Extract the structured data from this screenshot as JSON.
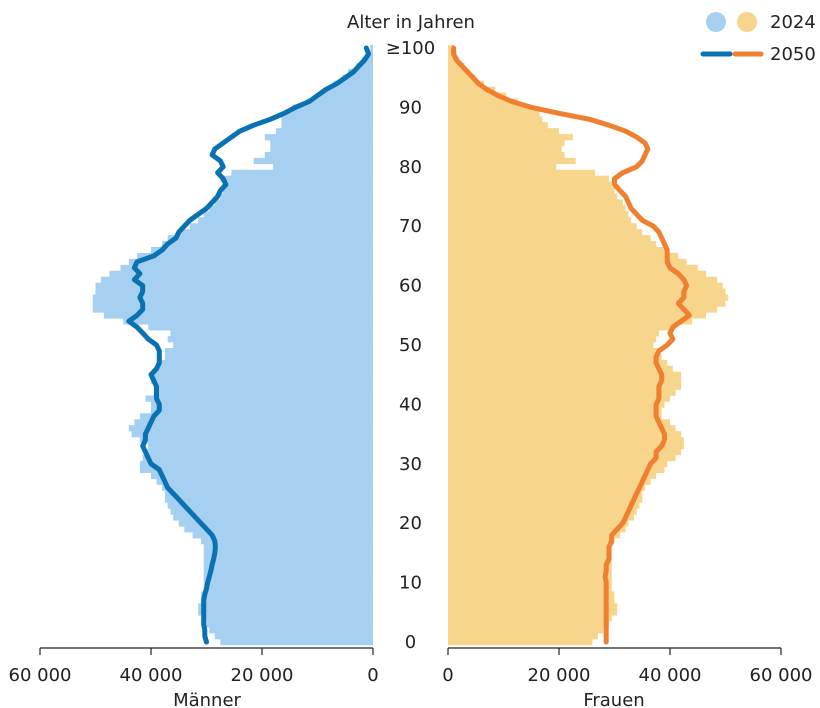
{
  "chart_data": {
    "type": "bar",
    "title": "Alter in Jahren",
    "age_ticks": [
      "0",
      "10",
      "20",
      "30",
      "40",
      "50",
      "60",
      "70",
      "80",
      "90",
      "≥100"
    ],
    "x_ticks_left": [
      "60 000",
      "40 000",
      "20 000",
      "0"
    ],
    "x_ticks_right": [
      "0",
      "20 000",
      "40 000",
      "60 000"
    ],
    "xlim": [
      0,
      60000
    ],
    "ylim": [
      0,
      100
    ],
    "panel_labels": {
      "left": "Männer",
      "right": "Frauen"
    },
    "legend": {
      "bars": {
        "label": "2024",
        "colors": {
          "men": "#a6d0f2",
          "women": "#f7d58c"
        }
      },
      "lines": {
        "label": "2050",
        "colors": {
          "men": "#0a72b3",
          "women": "#f07f2e"
        }
      },
      "placement": "top-right"
    },
    "ages": [
      0,
      1,
      2,
      3,
      4,
      5,
      6,
      7,
      8,
      9,
      10,
      11,
      12,
      13,
      14,
      15,
      16,
      17,
      18,
      19,
      20,
      21,
      22,
      23,
      24,
      25,
      26,
      27,
      28,
      29,
      30,
      31,
      32,
      33,
      34,
      35,
      36,
      37,
      38,
      39,
      40,
      41,
      42,
      43,
      44,
      45,
      46,
      47,
      48,
      49,
      50,
      51,
      52,
      53,
      54,
      55,
      56,
      57,
      58,
      59,
      60,
      61,
      62,
      63,
      64,
      65,
      66,
      67,
      68,
      69,
      70,
      71,
      72,
      73,
      74,
      75,
      76,
      77,
      78,
      79,
      80,
      81,
      82,
      83,
      84,
      85,
      86,
      87,
      88,
      89,
      90,
      91,
      92,
      93,
      94,
      95,
      96,
      97,
      98,
      99,
      100
    ],
    "series": [
      {
        "name": "Männer 2024",
        "kind": "bar",
        "values": [
          27500,
          28500,
          29500,
          30000,
          30500,
          31500,
          31500,
          31000,
          31000,
          30500,
          30500,
          30500,
          30500,
          30500,
          30500,
          30500,
          30500,
          31000,
          32500,
          34000,
          35000,
          36000,
          36500,
          37000,
          37500,
          37500,
          38000,
          39000,
          40000,
          42000,
          42000,
          41500,
          41000,
          40500,
          42000,
          43500,
          44000,
          43000,
          42000,
          40000,
          40000,
          41000,
          39500,
          39500,
          40000,
          40000,
          39000,
          38500,
          37500,
          37500,
          36000,
          37000,
          36500,
          40500,
          45000,
          48500,
          50500,
          50500,
          50500,
          50000,
          50000,
          49000,
          47500,
          45500,
          44000,
          42500,
          40000,
          38000,
          37000,
          35000,
          33000,
          31500,
          30500,
          29500,
          28500,
          27500,
          27000,
          26500,
          27500,
          25500,
          18000,
          21500,
          19500,
          18500,
          18500,
          19500,
          17500,
          16500,
          16500,
          16000,
          14500,
          12000,
          10000,
          8500,
          7000,
          5500,
          4500,
          3000,
          2000,
          1000,
          500
        ]
      },
      {
        "name": "Frauen 2024",
        "kind": "bar",
        "values": [
          26000,
          27000,
          28000,
          29000,
          29500,
          30500,
          30500,
          30000,
          30000,
          29500,
          29500,
          29500,
          29500,
          29500,
          29500,
          29500,
          29500,
          30000,
          31000,
          32000,
          32500,
          33500,
          34000,
          34500,
          35000,
          35000,
          35500,
          36500,
          37500,
          39000,
          39500,
          41000,
          42000,
          42500,
          42500,
          42000,
          41000,
          40000,
          38500,
          38500,
          39000,
          40000,
          41000,
          42000,
          42000,
          42000,
          40500,
          39500,
          38500,
          38000,
          37000,
          37500,
          38000,
          41000,
          44000,
          46500,
          48500,
          50000,
          50500,
          50000,
          49500,
          48500,
          46500,
          45000,
          43000,
          41500,
          39500,
          37500,
          36500,
          35000,
          34000,
          33000,
          32500,
          32000,
          31500,
          30500,
          30000,
          29500,
          29000,
          26500,
          19500,
          23000,
          21000,
          20500,
          21000,
          22500,
          20000,
          18000,
          17000,
          16500,
          15000,
          12500,
          10500,
          8500,
          6500,
          5000,
          4000,
          3000,
          2000,
          1500,
          1000
        ]
      },
      {
        "name": "Männer 2050",
        "kind": "line",
        "values": [
          30000,
          30300,
          30300,
          30500,
          30500,
          30500,
          30500,
          30500,
          30300,
          30000,
          29800,
          29500,
          29200,
          29000,
          28700,
          28500,
          28400,
          28500,
          29000,
          30000,
          31000,
          32000,
          33000,
          34000,
          35000,
          36000,
          37000,
          37500,
          38000,
          38500,
          40000,
          40500,
          41000,
          41500,
          41000,
          41000,
          40500,
          40000,
          39500,
          38500,
          38500,
          39000,
          39000,
          39000,
          39500,
          40000,
          39000,
          38500,
          38500,
          38500,
          39000,
          40500,
          41500,
          42500,
          44000,
          42500,
          41500,
          41500,
          42000,
          41500,
          41500,
          43000,
          42000,
          43000,
          42500,
          39500,
          38000,
          37000,
          35500,
          35000,
          34000,
          33000,
          31500,
          30000,
          29000,
          28000,
          27500,
          26500,
          27000,
          28000,
          27000,
          27500,
          29000,
          28500,
          27000,
          25500,
          24000,
          21500,
          18500,
          16000,
          14000,
          11500,
          10000,
          8500,
          6500,
          5000,
          3500,
          2500,
          1500,
          800,
          1200
        ]
      },
      {
        "name": "Frauen 2050",
        "kind": "line",
        "values": [
          28500,
          28500,
          28500,
          28500,
          28500,
          28500,
          28500,
          28500,
          28500,
          28500,
          28500,
          28300,
          28500,
          28500,
          29000,
          29000,
          29000,
          29500,
          29500,
          30500,
          31500,
          32000,
          32500,
          33000,
          33500,
          34000,
          34500,
          35000,
          35500,
          36000,
          36500,
          37500,
          37500,
          38500,
          39000,
          39000,
          38500,
          38000,
          37500,
          37500,
          37500,
          38000,
          38000,
          38000,
          38500,
          38500,
          38000,
          37500,
          37500,
          38000,
          39500,
          40500,
          40000,
          40500,
          42000,
          43500,
          42500,
          41500,
          42500,
          42500,
          43000,
          42500,
          41500,
          40000,
          39500,
          39500,
          39500,
          39000,
          38500,
          38000,
          37000,
          35000,
          34000,
          33000,
          32500,
          32000,
          31000,
          30000,
          30000,
          31500,
          34000,
          35000,
          35500,
          36000,
          35500,
          34000,
          32000,
          29000,
          25500,
          20000,
          15000,
          11500,
          9000,
          7000,
          5500,
          4500,
          3500,
          2500,
          1500,
          1000,
          1000
        ]
      }
    ]
  }
}
